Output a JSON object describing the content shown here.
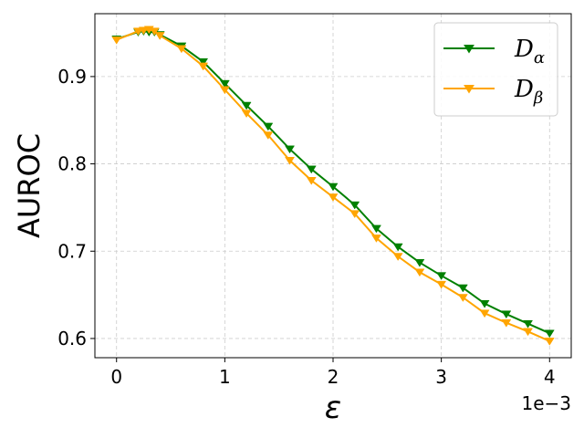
{
  "chart_data": {
    "type": "line",
    "xlabel": "ε",
    "ylabel": "AUROC",
    "x_offset_label": "1e−3",
    "xlim": [
      -0.0002,
      0.0042
    ],
    "ylim": [
      0.578,
      0.972
    ],
    "xticks": [
      0,
      0.001,
      0.002,
      0.003,
      0.004
    ],
    "xtick_labels": [
      "0",
      "1",
      "2",
      "3",
      "4"
    ],
    "yticks": [
      0.6,
      0.7,
      0.8,
      0.9
    ],
    "ytick_labels": [
      "0.6",
      "0.7",
      "0.8",
      "0.9"
    ],
    "grid": true,
    "legend_position": "top-right",
    "x": [
      0,
      0.0002,
      0.00025,
      0.0003,
      0.00035,
      0.0004,
      0.0006,
      0.0008,
      0.001,
      0.0012,
      0.0014,
      0.0016,
      0.0018,
      0.002,
      0.0022,
      0.0024,
      0.0026,
      0.0028,
      0.003,
      0.0032,
      0.0034,
      0.0036,
      0.0038,
      0.004
    ],
    "series": [
      {
        "name": "D",
        "subscript": "α",
        "color": "#008000",
        "marker": "triangle-down",
        "values": [
          0.943,
          0.951,
          0.952,
          0.951,
          0.951,
          0.948,
          0.935,
          0.917,
          0.892,
          0.867,
          0.843,
          0.817,
          0.794,
          0.774,
          0.753,
          0.726,
          0.705,
          0.687,
          0.672,
          0.658,
          0.64,
          0.628,
          0.617,
          0.606
        ]
      },
      {
        "name": "D",
        "subscript": "β",
        "color": "#FFA500",
        "marker": "triangle-down",
        "values": [
          0.942,
          0.952,
          0.953,
          0.954,
          0.952,
          0.947,
          0.932,
          0.912,
          0.885,
          0.858,
          0.833,
          0.804,
          0.781,
          0.762,
          0.743,
          0.715,
          0.694,
          0.676,
          0.662,
          0.647,
          0.629,
          0.618,
          0.608,
          0.597
        ]
      }
    ]
  }
}
